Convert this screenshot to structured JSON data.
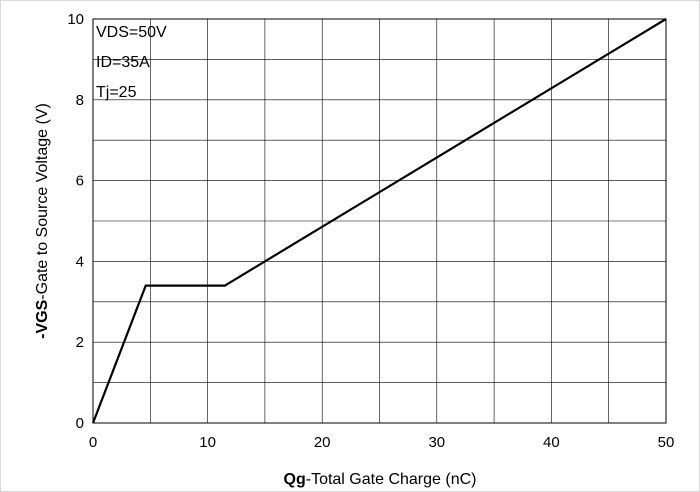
{
  "chart_data": {
    "type": "line",
    "xlabel_bold": "Qg",
    "xlabel_rest": "-Total Gate Charge (nC)",
    "ylabel_bold": "-VGS",
    "ylabel_rest": "-Gate to Source Voltage (V)",
    "xlim": [
      0,
      50
    ],
    "ylim": [
      0,
      10
    ],
    "x_ticks": [
      "0",
      "10",
      "20",
      "30",
      "40",
      "50"
    ],
    "y_ticks": [
      "0",
      "2",
      "4",
      "6",
      "8",
      "10"
    ],
    "grid": true,
    "annotations": [
      "VDS=50V",
      "ID=35A",
      "Tj=25"
    ],
    "series": [
      {
        "x": [
          0,
          4.6,
          11.5,
          50
        ],
        "y": [
          0,
          3.4,
          3.4,
          10
        ],
        "color": "#000000"
      }
    ]
  }
}
